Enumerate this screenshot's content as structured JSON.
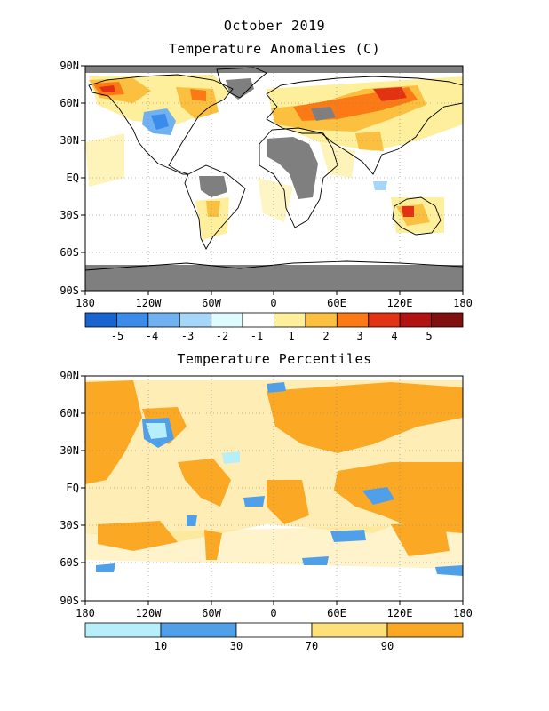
{
  "header": {
    "month": "October 2019"
  },
  "panels": [
    {
      "title": "Temperature Anomalies (C)",
      "lat_labels": [
        "90N",
        "60N",
        "30N",
        "EQ",
        "30S",
        "60S",
        "90S"
      ],
      "lon_labels": [
        "180",
        "120W",
        "60W",
        "0",
        "60E",
        "120E",
        "180"
      ],
      "legend": {
        "colors": [
          "#1764d0",
          "#3b8cea",
          "#6fb1f1",
          "#a6d6f8",
          "#e0fbfd",
          "#ffffff",
          "#fdef9c",
          "#fcc040",
          "#fb7a16",
          "#e23213",
          "#b31212",
          "#800f0f"
        ],
        "labels": [
          "-5",
          "-4",
          "-3",
          "-2",
          "-1",
          "1",
          "2",
          "3",
          "4",
          "5"
        ]
      }
    },
    {
      "title": "Temperature Percentiles",
      "lat_labels": [
        "90N",
        "60N",
        "30N",
        "EQ",
        "30S",
        "60S",
        "90S"
      ],
      "lon_labels": [
        "180",
        "120W",
        "60W",
        "0",
        "60E",
        "120E",
        "180"
      ],
      "legend": {
        "colors": [
          "#b6eefb",
          "#4fa0e8",
          "#ffffff",
          "#fde07a",
          "#fba825"
        ],
        "labels": [
          "10",
          "30",
          "70",
          "90"
        ]
      }
    }
  ],
  "colors": {
    "missing": "#7f7f7f",
    "coast": "#000000",
    "grid": "#7f7f7f"
  }
}
